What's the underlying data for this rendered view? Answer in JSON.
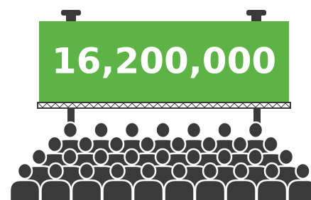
{
  "billboard": {
    "text": "16,200,000"
  }
}
